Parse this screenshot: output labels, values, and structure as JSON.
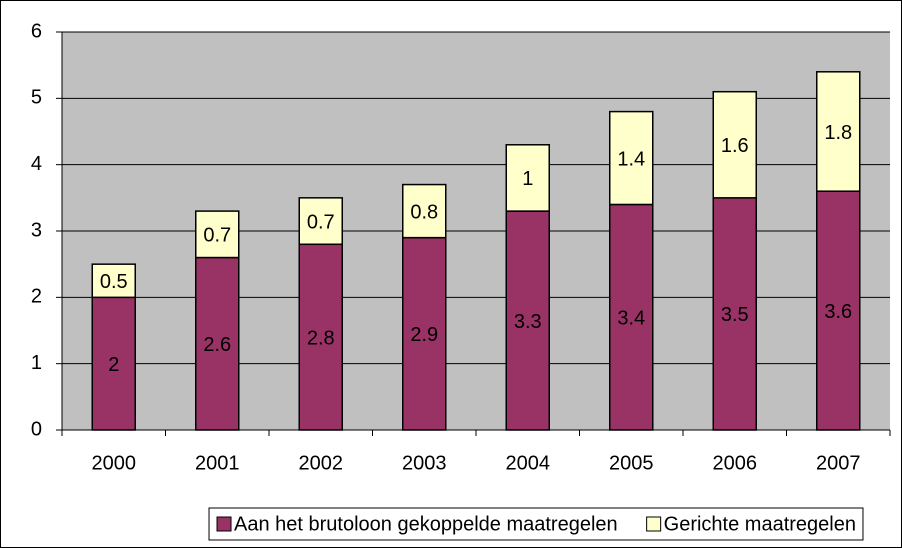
{
  "chart_data": {
    "type": "bar",
    "stacked": true,
    "categories": [
      "2000",
      "2001",
      "2002",
      "2003",
      "2004",
      "2005",
      "2006",
      "2007"
    ],
    "series": [
      {
        "name": "Aan het brutoloon gekoppelde maatregelen",
        "color": "#993366",
        "values": [
          2,
          2.6,
          2.8,
          2.9,
          3.3,
          3.4,
          3.5,
          3.6
        ]
      },
      {
        "name": "Gerichte maatregelen",
        "color": "#ffffcc",
        "values": [
          0.5,
          0.7,
          0.7,
          0.8,
          1,
          1.4,
          1.6,
          1.8
        ]
      }
    ],
    "ylim": [
      0,
      6
    ],
    "yticks": [
      0,
      1,
      2,
      3,
      4,
      5,
      6
    ],
    "grid": true,
    "legend": "bottom",
    "plot_background": "#c0c0c0"
  }
}
